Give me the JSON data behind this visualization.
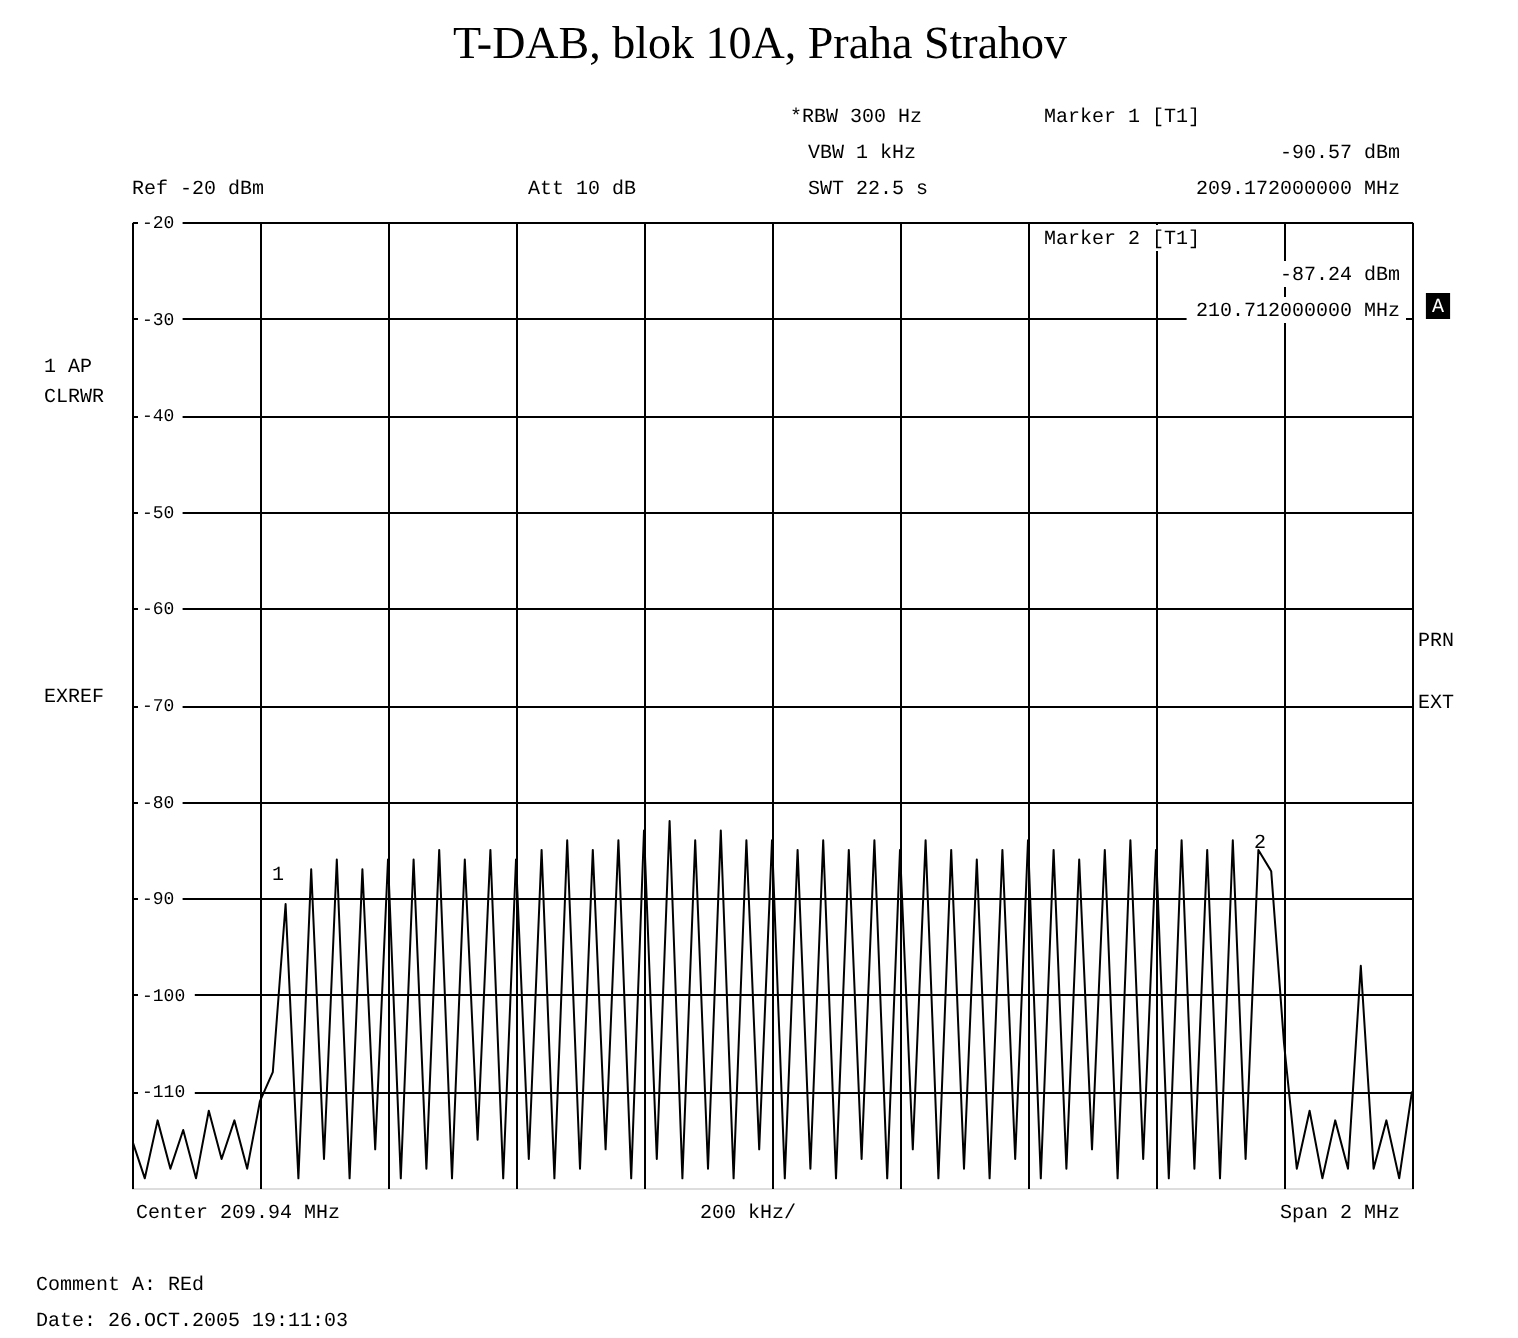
{
  "chart_data": {
    "type": "line",
    "title": "T-DAB, blok 10A, Praha Strahov",
    "categories": [
      null,
      null,
      null,
      null,
      null,
      null,
      null,
      null,
      null,
      null,
      null,
      null,
      null,
      null,
      null,
      null,
      null,
      null,
      null,
      null,
      null,
      null,
      null,
      null,
      null,
      null,
      null,
      null,
      null,
      null,
      null,
      null,
      null,
      null,
      null,
      null,
      null,
      null,
      null,
      null,
      null,
      null,
      null,
      null,
      null,
      null,
      null,
      null,
      null,
      null,
      null,
      null,
      null,
      null,
      null,
      null,
      null,
      null,
      null,
      null,
      null,
      null,
      null,
      null,
      null,
      null,
      null,
      null,
      null,
      null,
      null,
      null,
      null,
      null,
      null,
      null,
      null,
      null,
      null,
      null,
      null,
      null,
      null,
      null,
      null,
      null,
      null,
      null,
      null,
      null,
      null,
      null,
      null,
      null,
      null,
      null,
      null,
      null,
      null,
      null,
      null
    ],
    "series": [
      {
        "color": "#000000",
        "values": [
          -115,
          -119,
          -113,
          -118,
          -114,
          -119,
          -112,
          -117,
          -113,
          -118,
          -111,
          -108,
          -90.6,
          -119,
          -87,
          -117,
          -86,
          -119,
          -87,
          -116,
          -86,
          -119,
          -86,
          -118,
          -85,
          -119,
          -86,
          -115,
          -85,
          -119,
          -86,
          -117,
          -85,
          -119,
          -84,
          -118,
          -85,
          -116,
          -84,
          -119,
          -83,
          -117,
          -82,
          -119,
          -84,
          -118,
          -83,
          -119,
          -84,
          -116,
          -84,
          -119,
          -85,
          -118,
          -84,
          -119,
          -85,
          -117,
          -84,
          -119,
          -85,
          -116,
          -84,
          -119,
          -85,
          -118,
          -86,
          -119,
          -85,
          -117,
          -84,
          -119,
          -85,
          -118,
          -86,
          -116,
          -85,
          -119,
          -84,
          -117,
          -85,
          -119,
          -84,
          -118,
          -85,
          -119,
          -84,
          -117,
          -85,
          -87.2,
          -105,
          -118,
          -112,
          -119,
          -113,
          -118,
          -97,
          -118,
          -113,
          -119,
          -110
        ]
      }
    ],
    "ylim": [
      -120,
      -20
    ],
    "yticks": [
      -20,
      -30,
      -40,
      -50,
      -60,
      -70,
      -80,
      -90,
      -100,
      -110
    ],
    "tick_labels": "y",
    "grid": true,
    "line_style": "solid",
    "annotations": [
      "*RBW 300 Hz",
      "VBW 1 kHz",
      "SWT 22.5 s",
      "Marker 1 [T1]",
      "-90.57 dBm",
      "209.172000000 MHz",
      "Ref -20 dBm",
      "Att 10 dB",
      "Marker 2 [T1]",
      "-87.24 dBm",
      "210.712000000 MHz",
      "1 AP",
      "CLRWR",
      "EXREF",
      "A",
      "PRN",
      "EXT",
      "Center 209.94 MHz",
      "200 kHz/",
      "Span 2 MHz",
      "Comment A: REd",
      "Date:   26.OCT.2005   19:11:03",
      "1",
      "2"
    ]
  }
}
